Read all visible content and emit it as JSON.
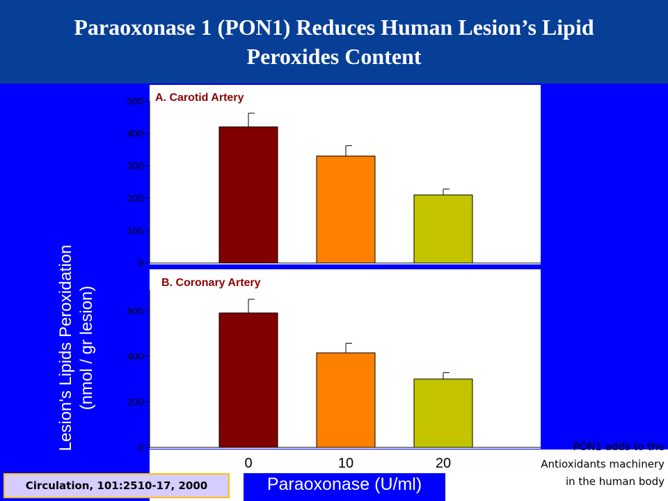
{
  "slide": {
    "title_line1": "Paraoxonase 1  (PON1) Reduces Human Lesion’s Lipid",
    "title_line2": "Peroxides Content",
    "side_note_lines": [
      "PON1 adds to the",
      "Antioxidants machinery",
      "in the human body"
    ],
    "citation": "Circulation, 101:2510-17, 2000"
  },
  "colors": {
    "title_bar": "#073f96",
    "slide_bg": "#0000ff",
    "bar_colors": [
      "#800000",
      "#ff8000",
      "#c3c300"
    ]
  },
  "chart_data": [
    {
      "type": "bar",
      "title": "A. Carotid Artery",
      "categories": [
        "0",
        "10",
        "20"
      ],
      "values": [
        420,
        330,
        210
      ],
      "error": [
        42,
        32,
        18
      ],
      "ylim": [
        0,
        500
      ],
      "yticks": [
        0,
        100,
        200,
        300,
        400,
        500
      ],
      "xlabel": "Paraoxonase (U/ml)",
      "ylabel": "Lesion's Lipids Peroxidation (nmol / gr lesion)"
    },
    {
      "type": "bar",
      "title": "B. Coronary Artery",
      "categories": [
        "0",
        "10",
        "20"
      ],
      "values": [
        590,
        415,
        300
      ],
      "error": [
        60,
        42,
        28
      ],
      "ylim": [
        0,
        690
      ],
      "yticks": [
        0,
        200,
        400,
        600
      ],
      "xlabel": "Paraoxonase (U/ml)",
      "ylabel": "Lesion's Lipids Peroxidation (nmol / gr lesion)"
    }
  ],
  "axis_text": {
    "ylabel_line1": "Lesion's Lipids Peroxidation",
    "ylabel_line2": "(nmol / gr lesion)",
    "xlabel": "Paraoxonase (U/ml)"
  }
}
